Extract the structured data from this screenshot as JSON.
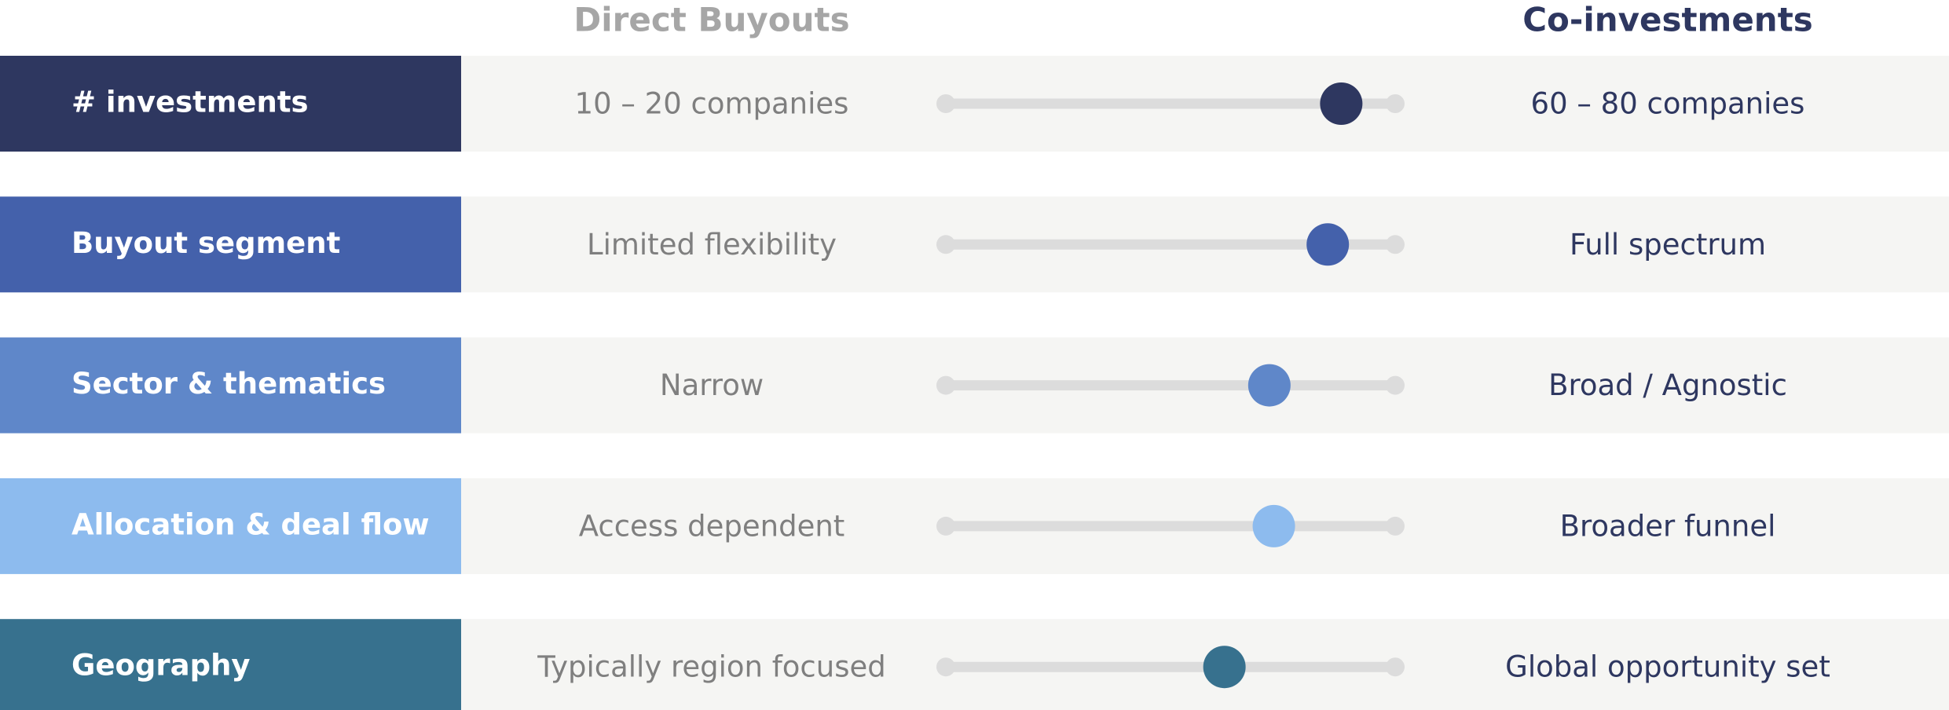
{
  "header": {
    "left": "Direct Buyouts",
    "right": "Co-investments"
  },
  "rows": [
    {
      "label": "# investments",
      "left": "10 – 20 companies",
      "right": "60 – 80 companies",
      "position": 0.88,
      "color": "#2e3760"
    },
    {
      "label": "Buyout segment",
      "left": "Limited flexibility",
      "right": "Full spectrum",
      "position": 0.85,
      "color": "#4461ab"
    },
    {
      "label": "Sector & thematics",
      "left": "Narrow",
      "right": "Broad / Agnostic",
      "position": 0.72,
      "color": "#5f87c9"
    },
    {
      "label": "Allocation & deal flow",
      "left": "Access dependent",
      "right": "Broader funnel",
      "position": 0.73,
      "color": "#8dbbee"
    },
    {
      "label": "Geography",
      "left": "Typically region focused",
      "right": "Global opportunity set",
      "position": 0.62,
      "color": "#37718e"
    }
  ]
}
